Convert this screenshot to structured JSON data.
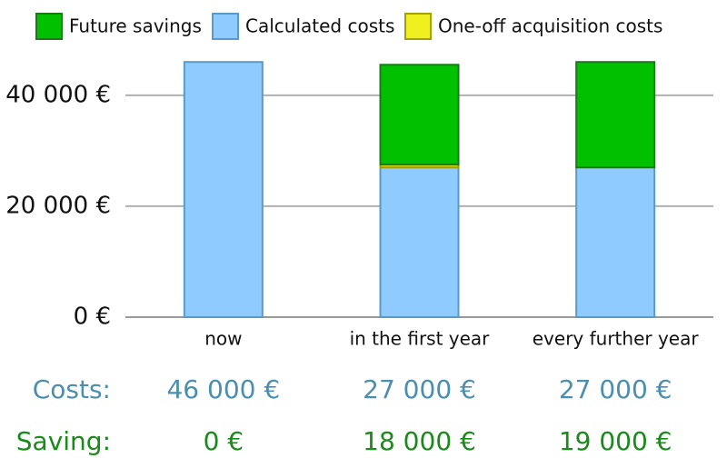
{
  "chart_data": {
    "type": "stacked-bar",
    "categories": [
      "now",
      "in the first year",
      "every further year"
    ],
    "series": [
      {
        "name": "Future savings",
        "color": "#00c000",
        "values": [
          0,
          18000,
          19000
        ]
      },
      {
        "name": "Calculated costs",
        "color": "#8fcbff",
        "values": [
          46000,
          27000,
          27000
        ]
      },
      {
        "name": "One-off acquisition costs",
        "color": "#f0f020",
        "values": [
          0,
          500,
          0
        ]
      }
    ],
    "ylim": [
      0,
      48000
    ],
    "yticks": [
      {
        "value": 0,
        "label": "0 €"
      },
      {
        "value": 20000,
        "label": "20 000 €"
      },
      {
        "value": 40000,
        "label": "40 000 €"
      }
    ],
    "grid": true
  },
  "summary": {
    "rows": [
      {
        "label": "Costs:",
        "color": "#4a8fae",
        "cells": [
          "46 000 €",
          "27 000 €",
          "27 000 €"
        ]
      },
      {
        "label": "Saving:",
        "color": "#1a8a1a",
        "cells": [
          "0 €",
          "18 000 €",
          "19 000 €"
        ]
      }
    ]
  }
}
